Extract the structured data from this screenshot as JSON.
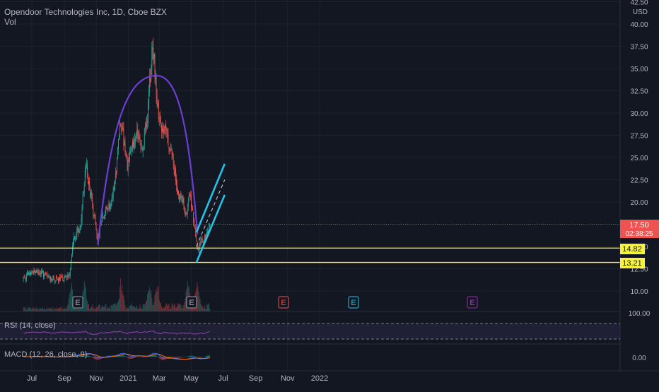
{
  "header": {
    "title": "Opendoor Technologies Inc, 1D, Cboe BZX",
    "vol_label": "Vol"
  },
  "price_axis": {
    "currency": "USD",
    "ticks": [
      "42.50",
      "40.00",
      "37.50",
      "35.00",
      "32.50",
      "30.00",
      "27.50",
      "25.00",
      "22.50",
      "20.00",
      "17.50",
      "15.00",
      "12.50",
      "10.00"
    ],
    "last_price": "17.50",
    "countdown": "02:38:25",
    "levels": [
      "14.82",
      "13.21"
    ]
  },
  "time_axis": {
    "labels": [
      "Jul",
      "Sep",
      "Nov",
      "2021",
      "Mar",
      "May",
      "Jul",
      "Sep",
      "Nov",
      "2022"
    ]
  },
  "rsi": {
    "label": "RSI (14, close)",
    "axis_label": "100.00"
  },
  "macd": {
    "label": "MACD (12, 26, close, 9)",
    "axis_label": "0.00"
  },
  "earnings_markers": [
    "E",
    "E",
    "E",
    "E",
    "E"
  ],
  "colors": {
    "background": "#131722",
    "up": "#26a69a",
    "down": "#ef5350",
    "arc": "#6a3fd4",
    "channel": "#22c3e8",
    "support": "#f5f23b",
    "rsi_line": "#8e44ad",
    "macd_line": "#2962ff",
    "signal_line": "#ff6d00"
  },
  "chart_data": {
    "type": "candlestick",
    "title": "Opendoor Technologies Inc, 1D, Cboe BZX",
    "currency": "USD",
    "ylim": [
      9.0,
      43.5
    ],
    "price_path": [
      [
        "2020-06-15",
        11.4
      ],
      [
        "2020-06-25",
        11.9
      ],
      [
        "2020-07-05",
        12.2
      ],
      [
        "2020-07-20",
        12.0
      ],
      [
        "2020-08-05",
        11.5
      ],
      [
        "2020-08-20",
        11.2
      ],
      [
        "2020-09-05",
        11.6
      ],
      [
        "2020-09-12",
        12.3
      ],
      [
        "2020-09-18",
        15.8
      ],
      [
        "2020-09-25",
        16.5
      ],
      [
        "2020-10-03",
        17.8
      ],
      [
        "2020-10-08",
        21.5
      ],
      [
        "2020-10-12",
        24.5
      ],
      [
        "2020-10-16",
        22.8
      ],
      [
        "2020-10-22",
        20.5
      ],
      [
        "2020-10-30",
        17.5
      ],
      [
        "2020-11-04",
        15.6
      ],
      [
        "2020-11-10",
        18.0
      ],
      [
        "2020-11-20",
        19.0
      ],
      [
        "2020-11-30",
        20.0
      ],
      [
        "2020-12-10",
        24.0
      ],
      [
        "2020-12-17",
        29.5
      ],
      [
        "2020-12-22",
        27.5
      ],
      [
        "2020-12-30",
        24.0
      ],
      [
        "2021-01-08",
        26.0
      ],
      [
        "2021-01-18",
        27.5
      ],
      [
        "2021-01-28",
        26.5
      ],
      [
        "2021-02-05",
        28.5
      ],
      [
        "2021-02-12",
        34.0
      ],
      [
        "2021-02-16",
        38.5
      ],
      [
        "2021-02-22",
        33.5
      ],
      [
        "2021-02-26",
        31.0
      ],
      [
        "2021-03-05",
        28.0
      ],
      [
        "2021-03-10",
        29.0
      ],
      [
        "2021-03-17",
        27.0
      ],
      [
        "2021-03-24",
        25.5
      ],
      [
        "2021-03-30",
        23.5
      ],
      [
        "2021-04-06",
        21.0
      ],
      [
        "2021-04-15",
        20.0
      ],
      [
        "2021-04-22",
        18.0
      ],
      [
        "2021-04-28",
        21.0
      ],
      [
        "2021-05-04",
        18.5
      ],
      [
        "2021-05-09",
        16.5
      ],
      [
        "2021-05-12",
        14.8
      ],
      [
        "2021-05-18",
        15.3
      ],
      [
        "2021-05-24",
        15.6
      ],
      [
        "2021-05-30",
        16.2
      ],
      [
        "2021-06-06",
        17.5
      ]
    ],
    "volume_peaks": [
      "2020-09-14",
      "2020-10-10",
      "2020-12-18",
      "2021-02-10",
      "2021-02-25",
      "2021-04-25",
      "2021-05-12"
    ],
    "annotations": [
      {
        "type": "rounding_arc",
        "color": "#6a3fd4",
        "from": [
          "2020-11-04",
          15.2
        ],
        "peak": [
          "2021-02-24",
          34.2
        ],
        "to": [
          "2021-05-13",
          16.4
        ]
      },
      {
        "type": "ascending_channel",
        "color": "#22c3e8",
        "lower": [
          [
            "2021-05-11",
            13.2
          ],
          [
            "2021-07-04",
            20.8
          ]
        ],
        "upper": [
          [
            "2021-05-11",
            16.6
          ],
          [
            "2021-07-04",
            24.3
          ]
        ],
        "midline": [
          [
            "2021-05-11",
            15.0
          ],
          [
            "2021-07-04",
            22.5
          ]
        ]
      },
      {
        "type": "horizontal_level",
        "color": "#f5f23b",
        "value": 14.82
      },
      {
        "type": "horizontal_level",
        "color": "#f5f23b",
        "value": 13.21
      },
      {
        "type": "price_line",
        "value": 17.5
      }
    ],
    "indicators": {
      "rsi": {
        "period": 14,
        "source": "close",
        "bands": [
          30,
          70
        ]
      },
      "macd": {
        "fast": 12,
        "slow": 26,
        "source": "close",
        "signal": 9
      }
    }
  }
}
